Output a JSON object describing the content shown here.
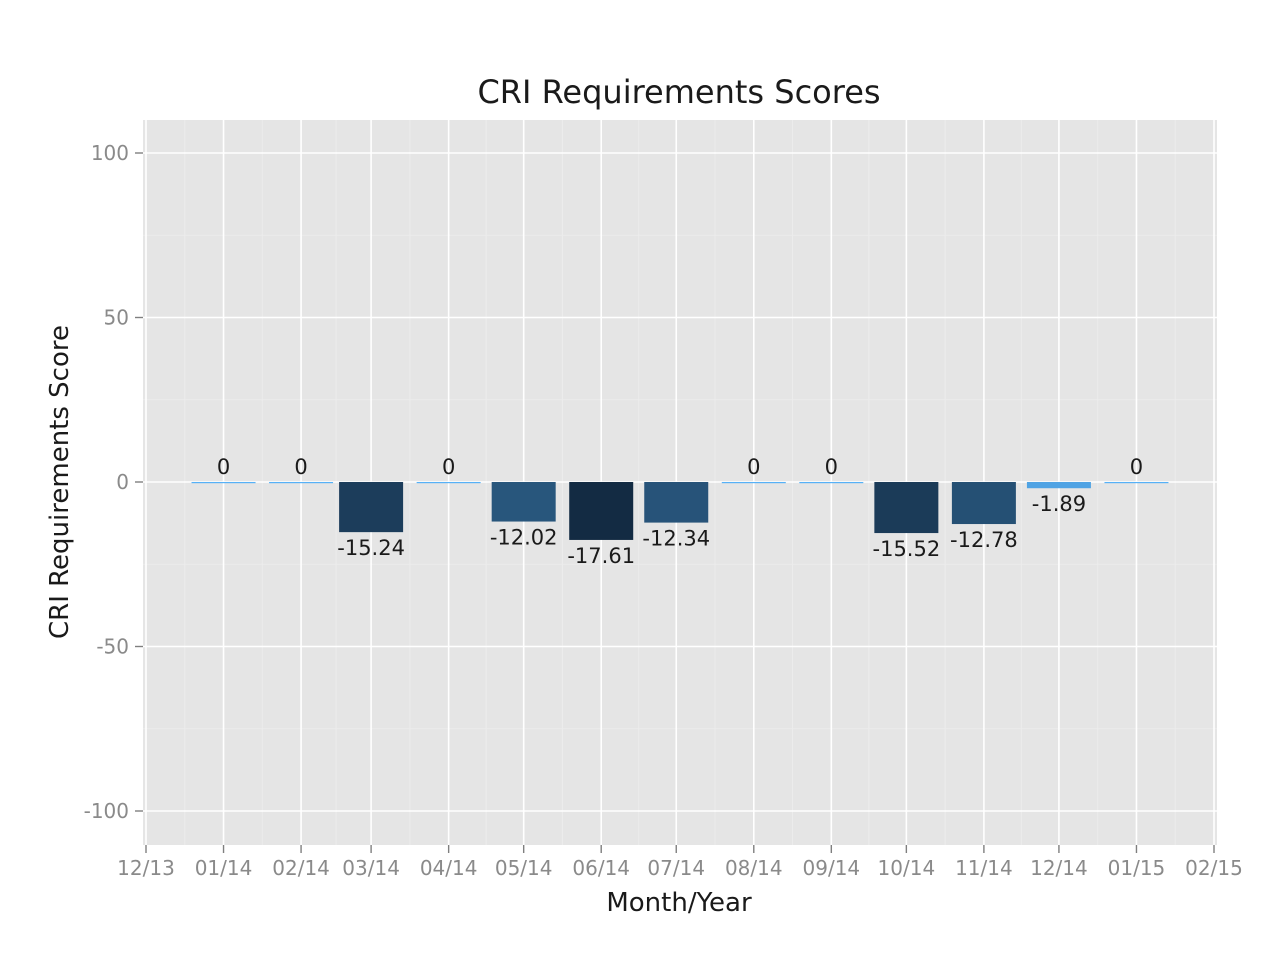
{
  "chart_data": {
    "type": "bar",
    "title": "CRI Requirements Scores",
    "xlabel": "Month/Year",
    "ylabel": "CRI Requirements Score",
    "ylim": [
      -110,
      110
    ],
    "yticks": [
      -100,
      -50,
      0,
      50,
      100
    ],
    "xticks": [
      "12/13",
      "01/14",
      "02/14",
      "03/14",
      "04/14",
      "05/14",
      "06/14",
      "07/14",
      "08/14",
      "09/14",
      "10/14",
      "11/14",
      "12/14",
      "01/15",
      "02/15"
    ],
    "xlim": [
      "2013-12-01",
      "2015-02-01"
    ],
    "categories": [
      "2014-01-01",
      "2014-02-01",
      "2014-03-01",
      "2014-04-01",
      "2014-05-01",
      "2014-06-01",
      "2014-07-01",
      "2014-08-01",
      "2014-09-01",
      "2014-10-01",
      "2014-11-01",
      "2014-12-01",
      "2015-01-01"
    ],
    "values": [
      0,
      0,
      -15.24,
      0,
      -12.02,
      -17.61,
      -12.34,
      0,
      0,
      -15.52,
      -12.78,
      -1.89,
      0
    ],
    "labels": [
      "0",
      "0",
      "-15.24",
      "0",
      "-12.02",
      "-17.61",
      "-12.34",
      "0",
      "0",
      "-15.52",
      "-12.78",
      "-1.89",
      "0"
    ],
    "grid": true,
    "legend": "none",
    "colors": {
      "panel": "#e5e5e5",
      "grid_major": "#ffffff",
      "grid_minor": "#ececec",
      "bar_low": "#56b1f7",
      "bar_high": "#132b43"
    }
  }
}
